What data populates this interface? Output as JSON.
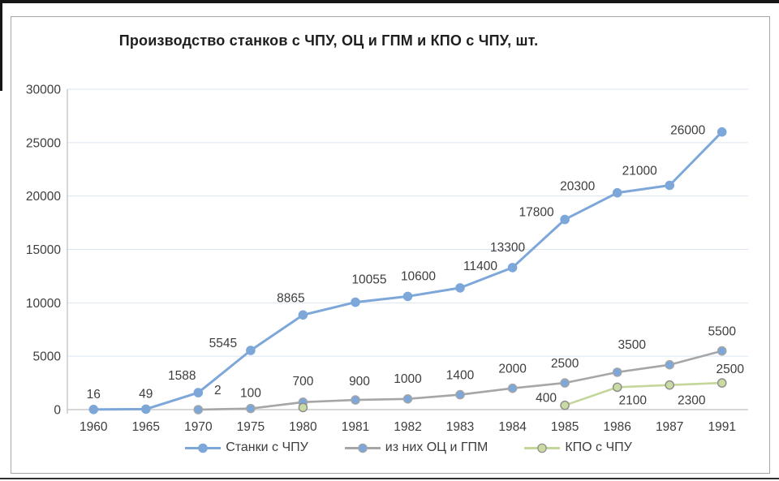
{
  "chart_data": {
    "type": "line",
    "title": "Производство станков с ЧПУ, ОЦ и ГПМ и КПО с ЧПУ, шт.",
    "categories": [
      "1960",
      "1965",
      "1970",
      "1975",
      "1980",
      "1981",
      "1982",
      "1983",
      "1984",
      "1985",
      "1986",
      "1987",
      "1991"
    ],
    "ylim": [
      0,
      30000
    ],
    "y_ticks": [
      0,
      5000,
      10000,
      15000,
      20000,
      25000,
      30000
    ],
    "grid": true,
    "legend_position": "bottom",
    "gridline_color": "#dbe5f1",
    "axis_color": "#bfbfbf",
    "series": [
      {
        "name": "Станки с ЧПУ",
        "line_color": "#7da7d9",
        "marker_fill": "#7da7d9",
        "marker_stroke": "#7da7d9",
        "values": [
          16,
          49,
          1588,
          5545,
          8865,
          10055,
          10600,
          11400,
          13300,
          17800,
          20300,
          21000,
          26000
        ],
        "labels": [
          "16",
          "49",
          "1588",
          "5545",
          "8865",
          "10055",
          "10600",
          "11400",
          "13300",
          "17800",
          "20300",
          "21000",
          "26000"
        ],
        "label_offsets": [
          [
            0,
            -4
          ],
          [
            0,
            -4
          ],
          [
            -20,
            -6
          ],
          [
            -34,
            6
          ],
          [
            -15,
            -6
          ],
          [
            17,
            -13
          ],
          [
            13,
            -10
          ],
          [
            25,
            -12
          ],
          [
            -6,
            -10
          ],
          [
            -35,
            6
          ],
          [
            -49,
            7
          ],
          [
            -37,
            -3
          ],
          [
            -42,
            13
          ]
        ]
      },
      {
        "name": "из них ОЦ и ГПМ",
        "line_color": "#a6a6a6",
        "marker_fill": "#7da7d9",
        "marker_stroke": "#a6a6a6",
        "values": [
          null,
          null,
          2,
          100,
          700,
          900,
          1000,
          1400,
          2000,
          2500,
          3500,
          4200,
          5500
        ],
        "labels": [
          null,
          null,
          "2",
          "100",
          "700",
          "900",
          "1000",
          "1400",
          "2000",
          "2500",
          "3500",
          null,
          "5500"
        ],
        "label_offsets": [
          null,
          null,
          [
            24,
            -9
          ],
          [
            0,
            -4
          ],
          [
            0,
            -11
          ],
          [
            5,
            -8
          ],
          [
            0,
            -10
          ],
          [
            0,
            -9
          ],
          [
            0,
            -9
          ],
          [
            0,
            -9
          ],
          [
            18,
            -19
          ],
          null,
          [
            0,
            -9
          ]
        ]
      },
      {
        "name": "КПО с ЧПУ",
        "line_color": "#c3d69b",
        "marker_fill": "#c9dba3",
        "marker_stroke": "#8c8c8c",
        "values": [
          null,
          null,
          null,
          null,
          200,
          null,
          null,
          null,
          null,
          400,
          2100,
          2300,
          2500
        ],
        "labels": [
          null,
          null,
          null,
          null,
          null,
          null,
          null,
          null,
          null,
          "400",
          "2100",
          "2300",
          "2500"
        ],
        "label_offsets": [
          null,
          null,
          null,
          null,
          null,
          null,
          null,
          null,
          null,
          [
            -23,
            6
          ],
          [
            19,
            31
          ],
          [
            27,
            34
          ],
          [
            10,
            -2
          ]
        ]
      }
    ]
  }
}
